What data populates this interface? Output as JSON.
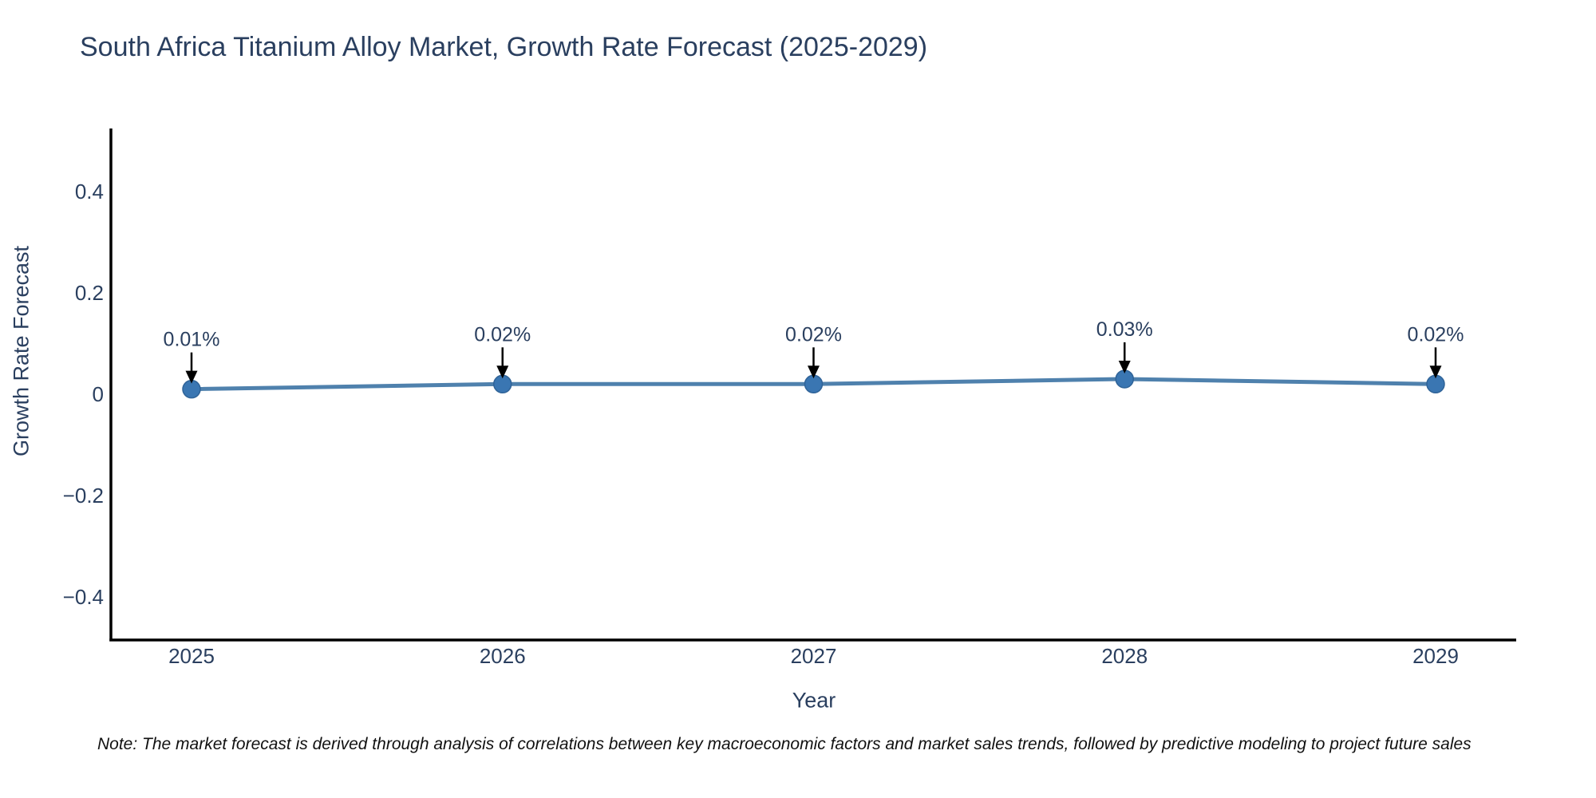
{
  "chart_data": {
    "type": "line",
    "title": "South Africa Titanium Alloy Market, Growth Rate Forecast (2025-2029)",
    "xlabel": "Year",
    "ylabel": "Growth Rate Forecast",
    "categories": [
      "2025",
      "2026",
      "2027",
      "2028",
      "2029"
    ],
    "values": [
      0.01,
      0.02,
      0.02,
      0.03,
      0.02
    ],
    "annotations": [
      "0.01%",
      "0.02%",
      "0.02%",
      "0.03%",
      "0.02%"
    ],
    "yticks": {
      "values": [
        0.4,
        0.2,
        0,
        -0.2,
        -0.4
      ],
      "labels": [
        "0.4",
        "0.2",
        "0",
        "−0.2",
        "−0.4"
      ]
    },
    "ylim": [
      -0.49,
      0.52
    ],
    "grid": false,
    "legend": false,
    "marker_style": "circle",
    "annotation_arrow": "down"
  },
  "note": {
    "text": "Note: The market forecast is derived through analysis of correlations between key macroeconomic factors and market sales trends, followed by predictive modeling to project future sales"
  },
  "colors": {
    "background": "#ffffff",
    "title_text": "#2a3f5f",
    "tick_text": "#2a3f5f",
    "note_text": "#111111",
    "axis_line": "#000000",
    "series_line": "#4f81ad",
    "marker_fill": "#3a76b2",
    "marker_edge": "#2f6398",
    "arrow": "#000000"
  }
}
